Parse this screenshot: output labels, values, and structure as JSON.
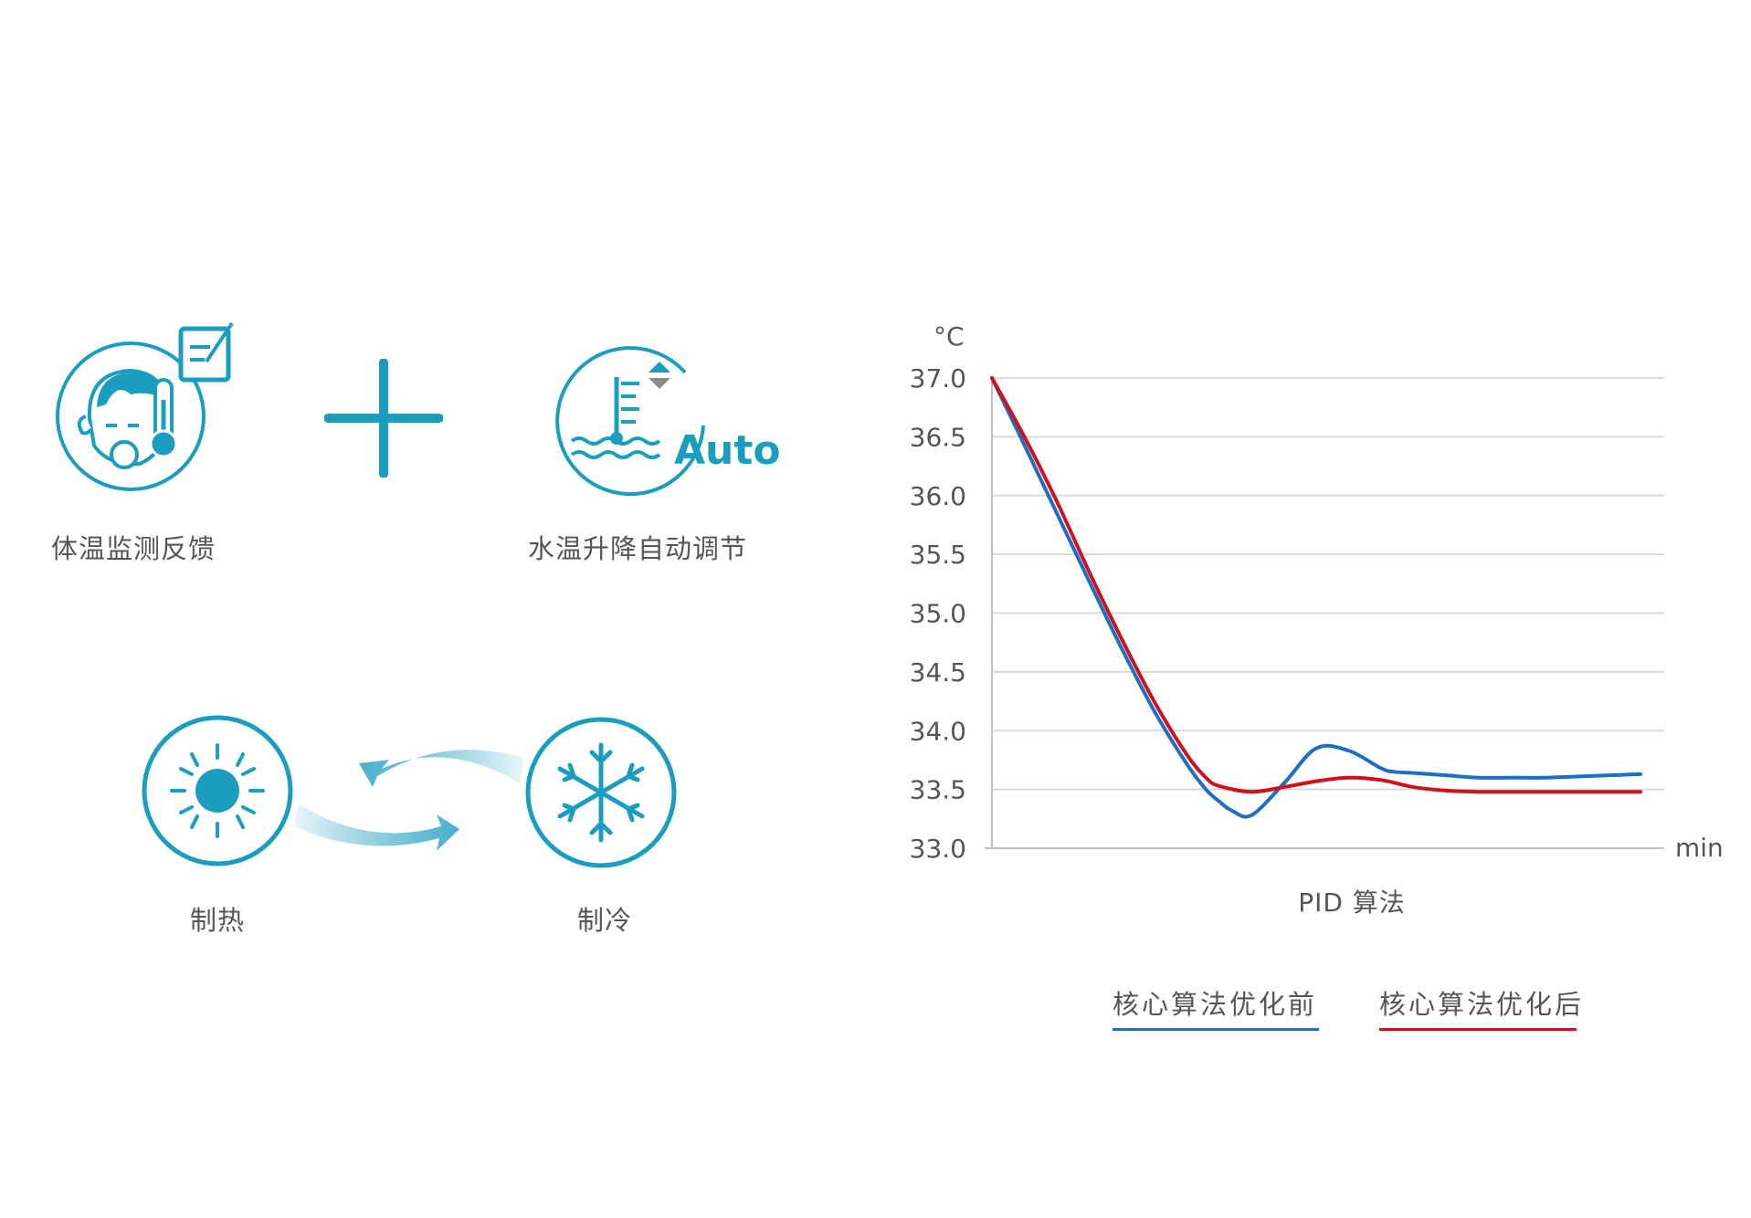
{
  "colors": {
    "accent": "#1b9dbf",
    "before_series": "#1e6fc4",
    "after_series": "#d0101d",
    "grid": "#d9d9d9",
    "text": "#555555"
  },
  "features": {
    "body_temp": {
      "label": "体温监测反馈",
      "icon": "baby-thermometer-icon"
    },
    "plus_icon": "plus-icon",
    "water_temp": {
      "label": "水温升降自动调节",
      "icon": "water-thermometer-icon",
      "badge": "Auto"
    },
    "heating": {
      "label": "制热",
      "icon": "sun-icon"
    },
    "cooling": {
      "label": "制冷",
      "icon": "snowflake-icon"
    },
    "cycle_icon": "cycle-arrows-icon"
  },
  "chart_data": {
    "type": "line",
    "title": "PID 算法",
    "xlabel": "min",
    "ylabel": "°C",
    "ylim": [
      33.0,
      37.0
    ],
    "yticks": [
      "37.0",
      "36.5",
      "36.0",
      "35.5",
      "35.0",
      "34.5",
      "34.0",
      "33.5",
      "33.0"
    ],
    "grid": true,
    "legend_position": "bottom",
    "series": [
      {
        "name": "核心算法优化前",
        "color": "#1e6fc4",
        "x": [
          0,
          5,
          10,
          15,
          20,
          25,
          30,
          33,
          35,
          37,
          40,
          45,
          50,
          55,
          60,
          62,
          65,
          70,
          75,
          80,
          85,
          90,
          95,
          100
        ],
        "y": [
          37.0,
          36.43,
          35.85,
          35.27,
          34.7,
          34.17,
          33.72,
          33.5,
          33.4,
          33.32,
          33.28,
          33.55,
          33.85,
          33.83,
          33.68,
          33.65,
          33.64,
          33.62,
          33.6,
          33.6,
          33.6,
          33.61,
          33.62,
          33.63
        ]
      },
      {
        "name": "核心算法优化后",
        "color": "#d0101d",
        "x": [
          0,
          5,
          10,
          15,
          20,
          25,
          30,
          33,
          35,
          40,
          45,
          50,
          55,
          60,
          65,
          70,
          75,
          80,
          85,
          90,
          95,
          100
        ],
        "y": [
          37.0,
          36.5,
          35.95,
          35.35,
          34.78,
          34.25,
          33.8,
          33.6,
          33.53,
          33.48,
          33.52,
          33.57,
          33.6,
          33.58,
          33.52,
          33.49,
          33.48,
          33.48,
          33.48,
          33.48,
          33.48,
          33.48
        ]
      }
    ]
  }
}
